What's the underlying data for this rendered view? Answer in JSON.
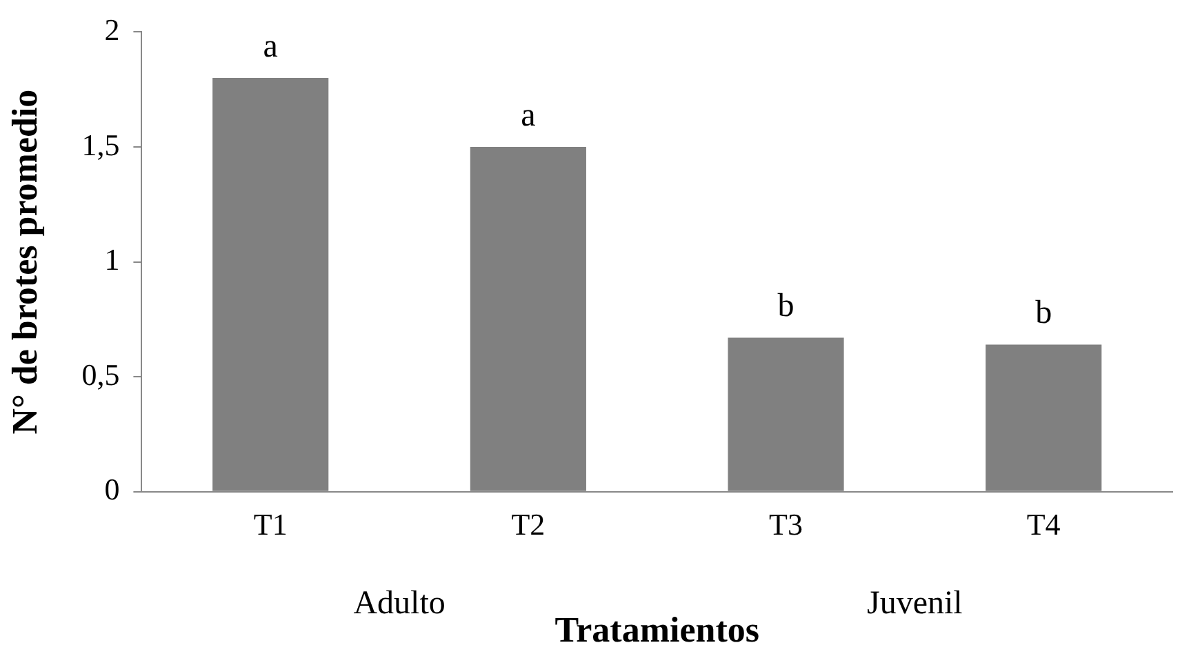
{
  "chart_data": {
    "type": "bar",
    "xlabel": "Tratamientos",
    "ylabel": "N° de brotes promedio",
    "categories": [
      "T1",
      "T2",
      "T3",
      "T4"
    ],
    "values": [
      1.8,
      1.5,
      0.67,
      0.64
    ],
    "color": "#808080",
    "ylim": [
      0,
      2
    ],
    "yticks": [
      {
        "value": 0,
        "label": "0"
      },
      {
        "value": 0.5,
        "label": "0,5"
      },
      {
        "value": 1,
        "label": "1"
      },
      {
        "value": 1.5,
        "label": "1,5"
      },
      {
        "value": 2,
        "label": "2"
      }
    ],
    "grid": false,
    "legend": false,
    "annotations": [
      {
        "text": "a",
        "x": "T1",
        "y": 1.8
      },
      {
        "text": "a",
        "x": "T2",
        "y": 1.5
      },
      {
        "text": "b",
        "x": "T3",
        "y": 0.67
      },
      {
        "text": "b",
        "x": "T4",
        "y": 0.64
      },
      "Adulto",
      "Juvenil"
    ]
  }
}
